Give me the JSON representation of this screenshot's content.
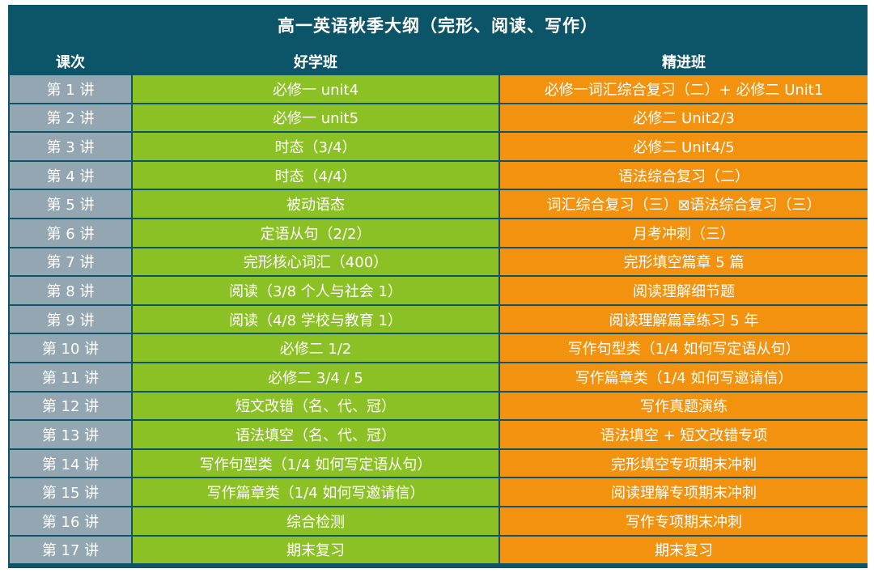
{
  "title": "高一英语秋季大纲（完形、阅读、写作）",
  "headers": {
    "lesson": "课次",
    "basic": "好学班",
    "advanced": "精进班"
  },
  "colors": {
    "frame": "#0c5568",
    "lesson_cell": "#93a6b2",
    "basic_cell": "#8bc125",
    "advanced_cell": "#f3920f",
    "text": "#ffffff"
  },
  "rows": [
    {
      "lesson": "第 1 讲",
      "basic": "必修一 unit4",
      "advanced": "必修一词汇综合复习（二）+ 必修二 Unit1"
    },
    {
      "lesson": "第 2 讲",
      "basic": "必修一 unit5",
      "advanced": "必修二 Unit2/3"
    },
    {
      "lesson": "第 3 讲",
      "basic": "时态（3/4）",
      "advanced": "必修二 Unit4/5"
    },
    {
      "lesson": "第 4 讲",
      "basic": "时态（4/4）",
      "advanced": "语法综合复习（二）"
    },
    {
      "lesson": "第 5 讲",
      "basic": "被动语态",
      "advanced": "词汇综合复习（三）⊠语法综合复习（三）"
    },
    {
      "lesson": "第 6 讲",
      "basic": "定语从句（2/2）",
      "advanced": "月考冲刺（三）"
    },
    {
      "lesson": "第 7 讲",
      "basic": "完形核心词汇（400）",
      "advanced": "完形填空篇章 5 篇"
    },
    {
      "lesson": "第 8 讲",
      "basic": "阅读（3/8 个人与社会 1）",
      "advanced": "阅读理解细节题"
    },
    {
      "lesson": "第 9 讲",
      "basic": "阅读（4/8 学校与教育 1）",
      "advanced": "阅读理解篇章练习 5 年"
    },
    {
      "lesson": "第 10 讲",
      "basic": "必修二 1/2",
      "advanced": "写作句型类（1/4 如何写定语从句）"
    },
    {
      "lesson": "第 11 讲",
      "basic": "必修二 3/4 / 5",
      "advanced": "写作篇章类（1/4 如何写邀请信）"
    },
    {
      "lesson": "第 12 讲",
      "basic": "短文改错（名、代、冠）",
      "advanced": "写作真题演练"
    },
    {
      "lesson": "第 13 讲",
      "basic": "语法填空（名、代、冠）",
      "advanced": "语法填空 + 短文改错专项"
    },
    {
      "lesson": "第 14 讲",
      "basic": "写作句型类（1/4 如何写定语从句）",
      "advanced": "完形填空专项期末冲刺"
    },
    {
      "lesson": "第 15 讲",
      "basic": "写作篇章类（1/4 如何写邀请信）",
      "advanced": "阅读理解专项期末冲刺"
    },
    {
      "lesson": "第 16 讲",
      "basic": "综合检测",
      "advanced": "写作专项期末冲刺"
    },
    {
      "lesson": "第 17 讲",
      "basic": "期末复习",
      "advanced": "期末复习"
    }
  ]
}
